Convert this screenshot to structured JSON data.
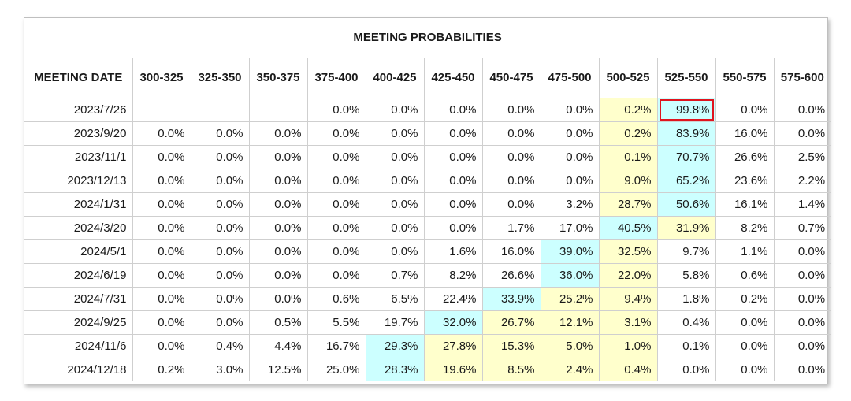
{
  "title": "MEETING PROBABILITIES",
  "header": {
    "date_label": "MEETING DATE",
    "ranges": [
      "300-325",
      "325-350",
      "350-375",
      "375-400",
      "400-425",
      "425-450",
      "450-475",
      "475-500",
      "500-525",
      "525-550",
      "550-575",
      "575-600"
    ]
  },
  "colors": {
    "yellow_highlight": "#ffffcc",
    "blue_highlight": "#ccffff",
    "outline_highlight": "#e0141e"
  },
  "rows": [
    {
      "date": "2023/7/26",
      "values": [
        "",
        "",
        "",
        "0.0%",
        "0.0%",
        "0.0%",
        "0.0%",
        "0.0%",
        "0.2%",
        "99.8%",
        "0.0%",
        "0.0%"
      ]
    },
    {
      "date": "2023/9/20",
      "values": [
        "0.0%",
        "0.0%",
        "0.0%",
        "0.0%",
        "0.0%",
        "0.0%",
        "0.0%",
        "0.0%",
        "0.2%",
        "83.9%",
        "16.0%",
        "0.0%"
      ]
    },
    {
      "date": "2023/11/1",
      "values": [
        "0.0%",
        "0.0%",
        "0.0%",
        "0.0%",
        "0.0%",
        "0.0%",
        "0.0%",
        "0.0%",
        "0.1%",
        "70.7%",
        "26.6%",
        "2.5%"
      ]
    },
    {
      "date": "2023/12/13",
      "values": [
        "0.0%",
        "0.0%",
        "0.0%",
        "0.0%",
        "0.0%",
        "0.0%",
        "0.0%",
        "0.0%",
        "9.0%",
        "65.2%",
        "23.6%",
        "2.2%"
      ]
    },
    {
      "date": "2024/1/31",
      "values": [
        "0.0%",
        "0.0%",
        "0.0%",
        "0.0%",
        "0.0%",
        "0.0%",
        "0.0%",
        "3.2%",
        "28.7%",
        "50.6%",
        "16.1%",
        "1.4%"
      ]
    },
    {
      "date": "2024/3/20",
      "values": [
        "0.0%",
        "0.0%",
        "0.0%",
        "0.0%",
        "0.0%",
        "0.0%",
        "1.7%",
        "17.0%",
        "40.5%",
        "31.9%",
        "8.2%",
        "0.7%"
      ]
    },
    {
      "date": "2024/5/1",
      "values": [
        "0.0%",
        "0.0%",
        "0.0%",
        "0.0%",
        "0.0%",
        "1.6%",
        "16.0%",
        "39.0%",
        "32.5%",
        "9.7%",
        "1.1%",
        "0.0%"
      ]
    },
    {
      "date": "2024/6/19",
      "values": [
        "0.0%",
        "0.0%",
        "0.0%",
        "0.0%",
        "0.7%",
        "8.2%",
        "26.6%",
        "36.0%",
        "22.0%",
        "5.8%",
        "0.6%",
        "0.0%"
      ]
    },
    {
      "date": "2024/7/31",
      "values": [
        "0.0%",
        "0.0%",
        "0.0%",
        "0.6%",
        "6.5%",
        "22.4%",
        "33.9%",
        "25.2%",
        "9.4%",
        "1.8%",
        "0.2%",
        "0.0%"
      ]
    },
    {
      "date": "2024/9/25",
      "values": [
        "0.0%",
        "0.0%",
        "0.5%",
        "5.5%",
        "19.7%",
        "32.0%",
        "26.7%",
        "12.1%",
        "3.1%",
        "0.4%",
        "0.0%",
        "0.0%"
      ]
    },
    {
      "date": "2024/11/6",
      "values": [
        "0.0%",
        "0.4%",
        "4.4%",
        "16.7%",
        "29.3%",
        "27.8%",
        "15.3%",
        "5.0%",
        "1.0%",
        "0.1%",
        "0.0%",
        "0.0%"
      ]
    },
    {
      "date": "2024/12/18",
      "values": [
        "0.2%",
        "3.0%",
        "12.5%",
        "25.0%",
        "28.3%",
        "19.6%",
        "8.5%",
        "2.4%",
        "0.4%",
        "0.0%",
        "0.0%",
        "0.0%"
      ]
    }
  ]
}
